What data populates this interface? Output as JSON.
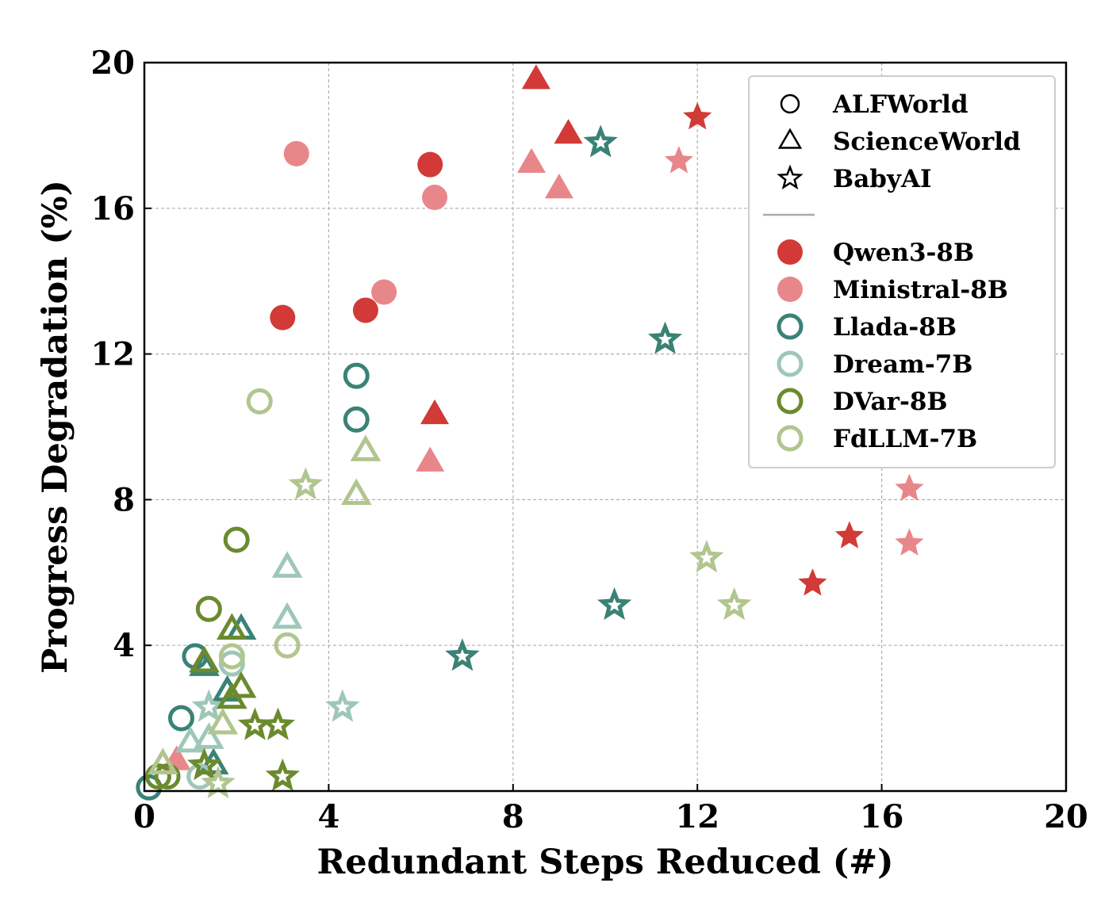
{
  "chart_data": {
    "type": "scatter",
    "xlabel": "Redundant Steps Reduced (#)",
    "ylabel": "Progress Degradation (%)",
    "xlim": [
      0,
      20
    ],
    "ylim": [
      0,
      20
    ],
    "xticks": [
      "0",
      "4",
      "8",
      "12",
      "16",
      "20"
    ],
    "yticks": [
      "4",
      "8",
      "12",
      "16",
      "20"
    ],
    "grid": true,
    "legend_position": "top-right",
    "marker_legend": [
      {
        "label": "ALFWorld",
        "marker": "circle"
      },
      {
        "label": "ScienceWorld",
        "marker": "triangle"
      },
      {
        "label": "BabyAI",
        "marker": "star"
      }
    ],
    "series": [
      {
        "name": "Qwen3-8B",
        "color": "#d13a36",
        "filled": true,
        "points": [
          {
            "x": 3.0,
            "y": 13.0,
            "marker": "circle"
          },
          {
            "x": 4.8,
            "y": 13.2,
            "marker": "circle"
          },
          {
            "x": 6.2,
            "y": 17.2,
            "marker": "circle"
          },
          {
            "x": 8.5,
            "y": 19.5,
            "marker": "triangle"
          },
          {
            "x": 9.2,
            "y": 18.0,
            "marker": "triangle"
          },
          {
            "x": 6.3,
            "y": 10.3,
            "marker": "triangle"
          },
          {
            "x": 12.0,
            "y": 18.5,
            "marker": "star"
          },
          {
            "x": 15.3,
            "y": 7.0,
            "marker": "star"
          },
          {
            "x": 14.5,
            "y": 5.7,
            "marker": "star"
          }
        ]
      },
      {
        "name": "Ministral-8B",
        "color": "#e8878a",
        "filled": true,
        "points": [
          {
            "x": 3.3,
            "y": 17.5,
            "marker": "circle"
          },
          {
            "x": 6.3,
            "y": 16.3,
            "marker": "circle"
          },
          {
            "x": 5.2,
            "y": 13.7,
            "marker": "circle"
          },
          {
            "x": 8.4,
            "y": 17.2,
            "marker": "triangle"
          },
          {
            "x": 9.0,
            "y": 16.5,
            "marker": "triangle"
          },
          {
            "x": 6.2,
            "y": 9.0,
            "marker": "triangle"
          },
          {
            "x": 0.7,
            "y": 0.8,
            "marker": "triangle"
          },
          {
            "x": 11.6,
            "y": 17.3,
            "marker": "star"
          },
          {
            "x": 16.6,
            "y": 8.3,
            "marker": "star"
          },
          {
            "x": 16.6,
            "y": 6.8,
            "marker": "star"
          }
        ]
      },
      {
        "name": "Llada-8B",
        "color": "#3a8276",
        "filled": false,
        "points": [
          {
            "x": 4.6,
            "y": 11.4,
            "marker": "circle"
          },
          {
            "x": 4.6,
            "y": 10.2,
            "marker": "circle"
          },
          {
            "x": 1.1,
            "y": 3.7,
            "marker": "circle"
          },
          {
            "x": 0.8,
            "y": 2.0,
            "marker": "circle"
          },
          {
            "x": 0.1,
            "y": 0.1,
            "marker": "circle"
          },
          {
            "x": 2.1,
            "y": 4.4,
            "marker": "triangle"
          },
          {
            "x": 1.3,
            "y": 3.4,
            "marker": "triangle"
          },
          {
            "x": 1.8,
            "y": 2.7,
            "marker": "triangle"
          },
          {
            "x": 1.5,
            "y": 0.7,
            "marker": "triangle"
          },
          {
            "x": 9.9,
            "y": 17.8,
            "marker": "star"
          },
          {
            "x": 11.3,
            "y": 12.4,
            "marker": "star"
          },
          {
            "x": 10.2,
            "y": 5.1,
            "marker": "star"
          },
          {
            "x": 6.9,
            "y": 3.7,
            "marker": "star"
          }
        ]
      },
      {
        "name": "Dream-7B",
        "color": "#9fc7b7",
        "filled": false,
        "points": [
          {
            "x": 1.9,
            "y": 3.5,
            "marker": "circle"
          },
          {
            "x": 1.2,
            "y": 0.4,
            "marker": "circle"
          },
          {
            "x": 3.1,
            "y": 6.1,
            "marker": "triangle"
          },
          {
            "x": 3.1,
            "y": 4.7,
            "marker": "triangle"
          },
          {
            "x": 1.4,
            "y": 1.4,
            "marker": "triangle"
          },
          {
            "x": 1.0,
            "y": 1.3,
            "marker": "triangle"
          },
          {
            "x": 4.3,
            "y": 2.3,
            "marker": "star"
          },
          {
            "x": 1.4,
            "y": 2.3,
            "marker": "star"
          }
        ]
      },
      {
        "name": "DVar-8B",
        "color": "#6b8a2e",
        "filled": false,
        "points": [
          {
            "x": 2.0,
            "y": 6.9,
            "marker": "circle"
          },
          {
            "x": 1.4,
            "y": 5.0,
            "marker": "circle"
          },
          {
            "x": 0.5,
            "y": 0.4,
            "marker": "circle"
          },
          {
            "x": 0.3,
            "y": 0.4,
            "marker": "circle"
          },
          {
            "x": 1.9,
            "y": 4.4,
            "marker": "triangle"
          },
          {
            "x": 2.1,
            "y": 2.8,
            "marker": "triangle"
          },
          {
            "x": 1.3,
            "y": 3.5,
            "marker": "triangle"
          },
          {
            "x": 1.9,
            "y": 2.5,
            "marker": "triangle"
          },
          {
            "x": 2.4,
            "y": 1.8,
            "marker": "star"
          },
          {
            "x": 2.9,
            "y": 1.8,
            "marker": "star"
          },
          {
            "x": 3.0,
            "y": 0.4,
            "marker": "star"
          },
          {
            "x": 1.3,
            "y": 0.7,
            "marker": "star"
          }
        ]
      },
      {
        "name": "FdLLM-7B",
        "color": "#b1c58f",
        "filled": false,
        "points": [
          {
            "x": 2.5,
            "y": 10.7,
            "marker": "circle"
          },
          {
            "x": 3.1,
            "y": 4.0,
            "marker": "circle"
          },
          {
            "x": 1.9,
            "y": 3.7,
            "marker": "circle"
          },
          {
            "x": 4.8,
            "y": 9.3,
            "marker": "triangle"
          },
          {
            "x": 4.6,
            "y": 8.1,
            "marker": "triangle"
          },
          {
            "x": 1.7,
            "y": 1.8,
            "marker": "triangle"
          },
          {
            "x": 0.4,
            "y": 0.7,
            "marker": "triangle"
          },
          {
            "x": 3.5,
            "y": 8.4,
            "marker": "star"
          },
          {
            "x": 12.2,
            "y": 6.4,
            "marker": "star"
          },
          {
            "x": 12.8,
            "y": 5.1,
            "marker": "star"
          },
          {
            "x": 1.6,
            "y": 0.2,
            "marker": "star"
          }
        ]
      }
    ]
  }
}
